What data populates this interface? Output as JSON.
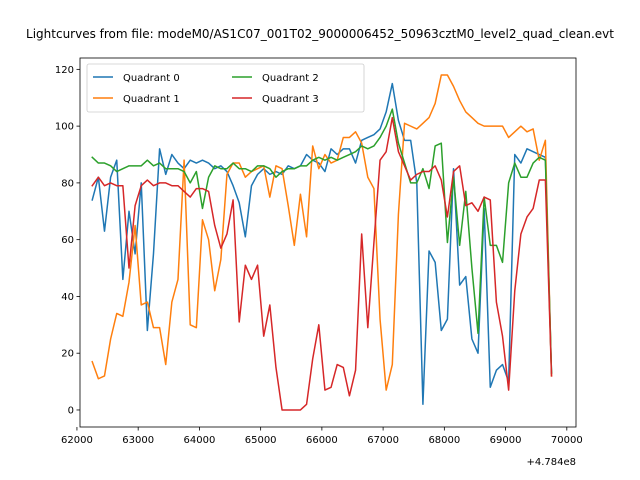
{
  "chart_data": {
    "type": "line",
    "title": "Lightcurves from file: modeM0/AS1C07_001T02_9000006452_50963cztM0_level2_quad_clean.evt",
    "xlabel": "",
    "ylabel": "",
    "x_offset_label": "+4.784e8",
    "xlim": [
      62050,
      70150
    ],
    "ylim": [
      -6,
      124
    ],
    "xticks": [
      62000,
      63000,
      64000,
      65000,
      66000,
      67000,
      68000,
      69000,
      70000
    ],
    "yticks": [
      0,
      20,
      40,
      60,
      80,
      100,
      120
    ],
    "x_tick_labels": [
      "62000",
      "63000",
      "64000",
      "65000",
      "66000",
      "67000",
      "68000",
      "69000",
      "70000"
    ],
    "y_tick_labels": [
      "0",
      "20",
      "40",
      "60",
      "80",
      "100",
      "120"
    ],
    "grid": false,
    "legend": {
      "placement": "top-left",
      "columns": 2
    },
    "series": [
      {
        "name": "Quadrant 0",
        "color": "#1f77b4",
        "x": [
          62250,
          62350,
          62450,
          62550,
          62650,
          62750,
          62850,
          62950,
          63050,
          63150,
          63250,
          63350,
          63450,
          63550,
          63650,
          63750,
          63850,
          63950,
          64050,
          64150,
          64250,
          64350,
          64450,
          64550,
          64650,
          64750,
          64850,
          64950,
          65050,
          65150,
          65250,
          65350,
          65450,
          65550,
          65650,
          65750,
          65850,
          65950,
          66050,
          66150,
          66250,
          66350,
          66450,
          66550,
          66650,
          66750,
          66850,
          66950,
          67050,
          67150,
          67250,
          67350,
          67450,
          67550,
          67650,
          67750,
          67850,
          67950,
          68050,
          68150,
          68250,
          68350,
          68450,
          68550,
          68650,
          68750,
          68850,
          68950,
          69050,
          69150,
          69250,
          69350,
          69450,
          69550,
          69650,
          69750
        ],
        "y": [
          74,
          82,
          63,
          82,
          88,
          46,
          70,
          55,
          80,
          28,
          55,
          92,
          83,
          90,
          87,
          85,
          88,
          87,
          88,
          87,
          85,
          86,
          84,
          79,
          73,
          61,
          79,
          83,
          85,
          83,
          84,
          83,
          86,
          85,
          86,
          90,
          88,
          87,
          84,
          92,
          90,
          92,
          92,
          87,
          95,
          96,
          97,
          99,
          105,
          115,
          102,
          95,
          95,
          80,
          2,
          56,
          52,
          28,
          32,
          85,
          44,
          47,
          25,
          20,
          71,
          8,
          14,
          16,
          10,
          90,
          87,
          92,
          91,
          90,
          89,
          13
        ]
      },
      {
        "name": "Quadrant 1",
        "color": "#ff7f0e",
        "x": [
          62250,
          62350,
          62450,
          62550,
          62650,
          62750,
          62850,
          62950,
          63050,
          63150,
          63250,
          63350,
          63450,
          63550,
          63650,
          63750,
          63850,
          63950,
          64050,
          64150,
          64250,
          64350,
          64450,
          64550,
          64650,
          64750,
          64850,
          64950,
          65050,
          65150,
          65250,
          65350,
          65450,
          65550,
          65650,
          65750,
          65850,
          65950,
          66050,
          66150,
          66250,
          66350,
          66450,
          66550,
          66650,
          66750,
          66850,
          66950,
          67050,
          67150,
          67250,
          67350,
          67450,
          67550,
          67650,
          67750,
          67850,
          67950,
          68050,
          68150,
          68250,
          68350,
          68450,
          68550,
          68650,
          68750,
          68850,
          68950,
          69050,
          69150,
          69250,
          69350,
          69450,
          69550,
          69650,
          69750
        ],
        "y": [
          17,
          11,
          12,
          25,
          34,
          33,
          45,
          65,
          37,
          38,
          29,
          29,
          16,
          38,
          46,
          88,
          30,
          29,
          67,
          60,
          42,
          53,
          83,
          87,
          87,
          82,
          84,
          85,
          86,
          75,
          86,
          85,
          72,
          58,
          76,
          61,
          93,
          85,
          90,
          87,
          88,
          96,
          96,
          98,
          94,
          82,
          78,
          32,
          7,
          16,
          69,
          101,
          100,
          99,
          101,
          103,
          108,
          118,
          118,
          114,
          109,
          105,
          103,
          101,
          100,
          100,
          100,
          100,
          96,
          98,
          100,
          98,
          99,
          88,
          95,
          12
        ]
      },
      {
        "name": "Quadrant 2",
        "color": "#2ca02c",
        "x": [
          62250,
          62350,
          62450,
          62550,
          62650,
          62750,
          62850,
          62950,
          63050,
          63150,
          63250,
          63350,
          63450,
          63550,
          63650,
          63750,
          63850,
          63950,
          64050,
          64150,
          64250,
          64350,
          64450,
          64550,
          64650,
          64750,
          64850,
          64950,
          65050,
          65150,
          65250,
          65350,
          65450,
          65550,
          65650,
          65750,
          65850,
          65950,
          66050,
          66150,
          66250,
          66350,
          66450,
          66550,
          66650,
          66750,
          66850,
          66950,
          67050,
          67150,
          67250,
          67350,
          67450,
          67550,
          67650,
          67750,
          67850,
          67950,
          68050,
          68150,
          68250,
          68350,
          68450,
          68550,
          68650,
          68750,
          68850,
          68950,
          69050,
          69150,
          69250,
          69350,
          69450,
          69550,
          69650,
          69750
        ],
        "y": [
          89,
          87,
          87,
          86,
          84,
          85,
          86,
          86,
          86,
          88,
          86,
          87,
          85,
          85,
          85,
          84,
          80,
          84,
          71,
          82,
          86,
          85,
          85,
          87,
          85,
          85,
          84,
          86,
          86,
          85,
          82,
          84,
          85,
          85,
          86,
          86,
          88,
          89,
          88,
          89,
          88,
          89,
          90,
          91,
          93,
          92,
          93,
          96,
          100,
          106,
          94,
          87,
          80,
          80,
          85,
          78,
          93,
          94,
          59,
          82,
          58,
          77,
          50,
          27,
          75,
          58,
          58,
          52,
          80,
          87,
          82,
          82,
          87,
          89,
          88,
          13
        ]
      },
      {
        "name": "Quadrant 3",
        "color": "#d62728",
        "x": [
          62250,
          62350,
          62450,
          62550,
          62650,
          62750,
          62850,
          62950,
          63050,
          63150,
          63250,
          63350,
          63450,
          63550,
          63650,
          63750,
          63850,
          63950,
          64050,
          64150,
          64250,
          64350,
          64450,
          64550,
          64650,
          64750,
          64850,
          64950,
          65050,
          65150,
          65250,
          65350,
          65450,
          65550,
          65650,
          65750,
          65850,
          65950,
          66050,
          66150,
          66250,
          66350,
          66450,
          66550,
          66650,
          66750,
          66850,
          66950,
          67050,
          67150,
          67250,
          67350,
          67450,
          67550,
          67650,
          67750,
          67850,
          67950,
          68050,
          68150,
          68250,
          68350,
          68450,
          68550,
          68650,
          68750,
          68850,
          68950,
          69050,
          69150,
          69250,
          69350,
          69450,
          69550,
          69650,
          69750
        ],
        "y": [
          79,
          82,
          79,
          80,
          79,
          79,
          50,
          72,
          79,
          81,
          79,
          80,
          80,
          79,
          79,
          77,
          75,
          78,
          78,
          77,
          65,
          57,
          62,
          74,
          31,
          51,
          46,
          51,
          26,
          37,
          15,
          0,
          0,
          0,
          0,
          2,
          18,
          30,
          7,
          8,
          16,
          15,
          5,
          14,
          62,
          29,
          59,
          88,
          91,
          103,
          91,
          86,
          81,
          83,
          84,
          84,
          86,
          81,
          68,
          84,
          86,
          72,
          73,
          70,
          75,
          74,
          38,
          26,
          7,
          42,
          62,
          68,
          71,
          81,
          81,
          12
        ]
      }
    ]
  }
}
